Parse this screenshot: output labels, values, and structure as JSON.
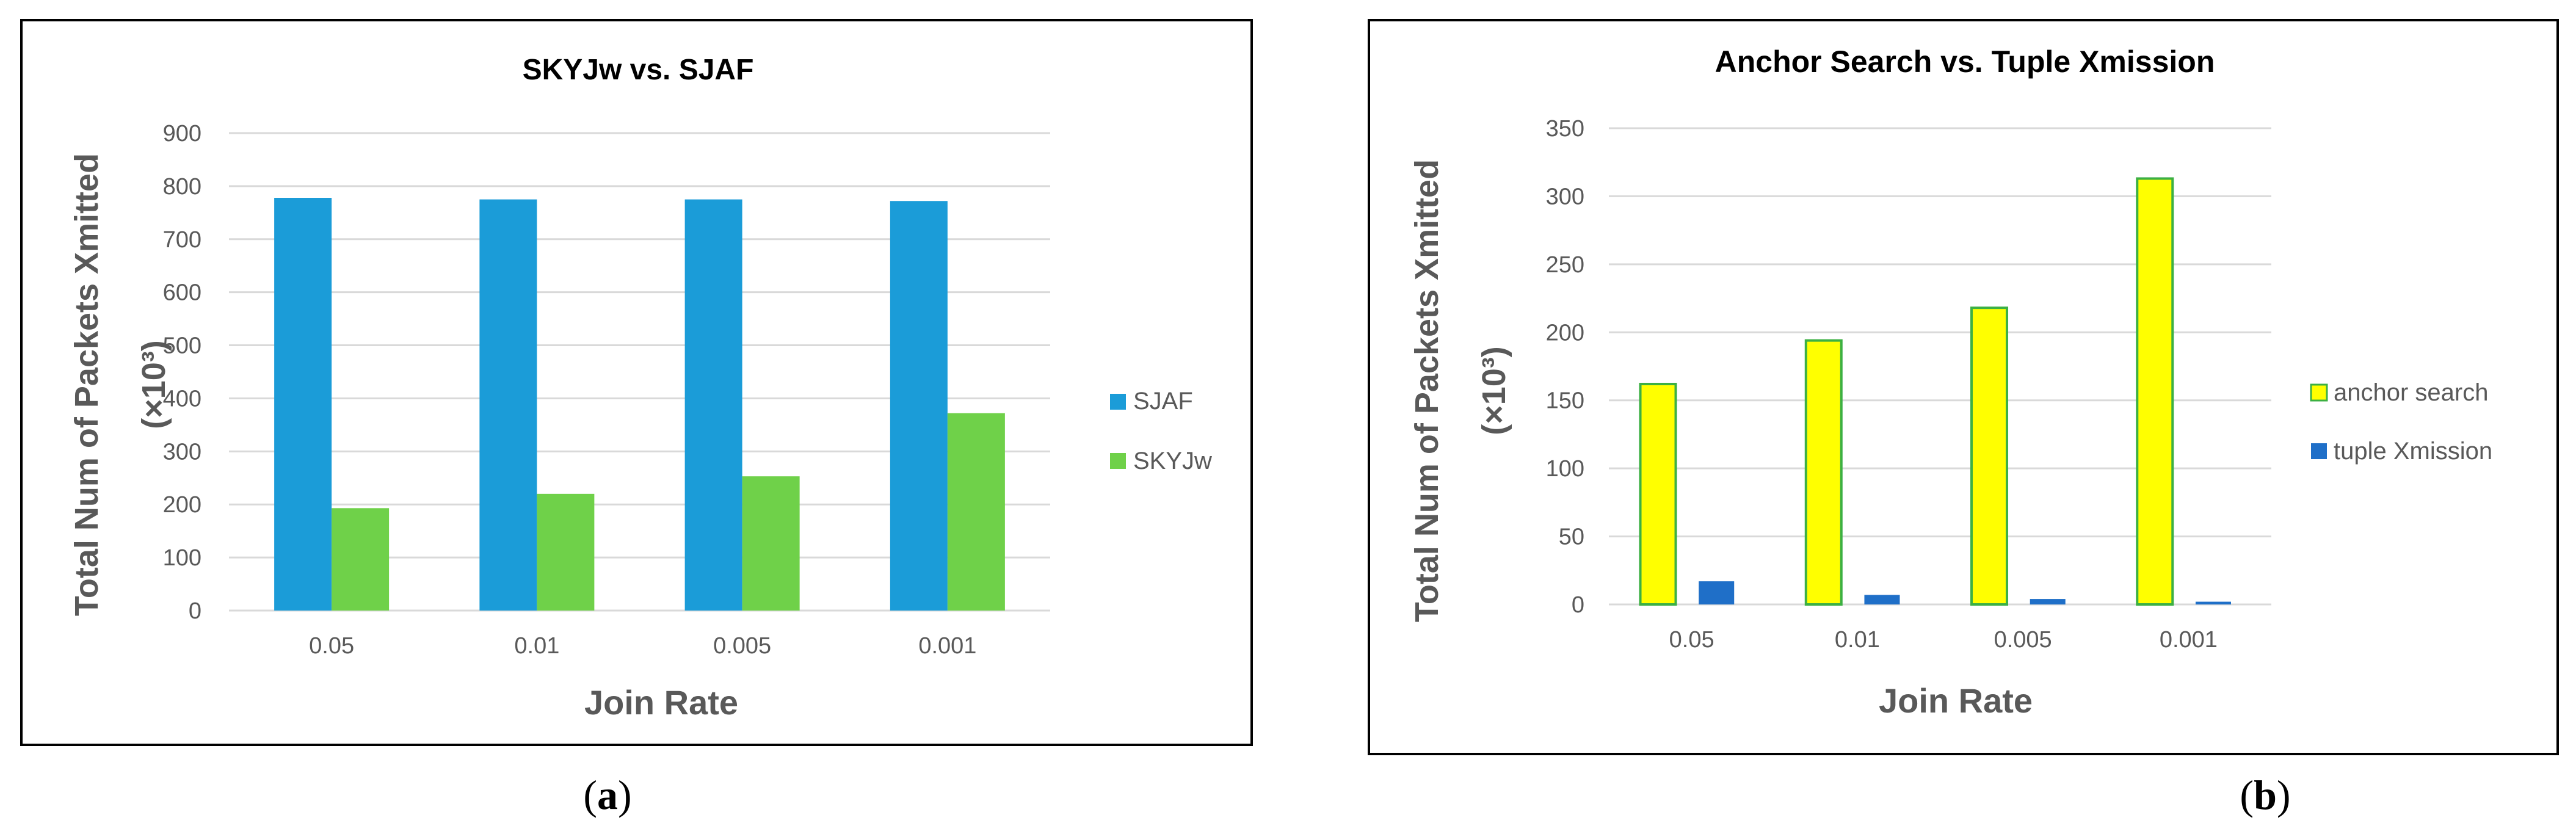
{
  "panels": [
    {
      "caption_open": "(",
      "caption_letter": "a",
      "caption_close": ")"
    },
    {
      "caption_open": "(",
      "caption_letter": "b",
      "caption_close": ")"
    }
  ],
  "colors": {
    "sjaf": "#1b9cd8",
    "skyjw": "#6fd149",
    "anchor_fill": "#ffff00",
    "anchor_stroke": "#3cb043",
    "tuple": "#1f6fc8",
    "grid": "#d9d9d9",
    "axis_text": "#595959",
    "title_text": "#000000",
    "frame": "#000000"
  },
  "chart_data": [
    {
      "type": "bar",
      "title": "SKYJw vs. SJAF",
      "xlabel": "Join Rate",
      "ylabel_line1": "Total Num of Packets Xmitted",
      "ylabel_line2": "(×10³)",
      "categories": [
        "0.05",
        "0.01",
        "0.005",
        "0.001"
      ],
      "ylim": [
        0,
        900
      ],
      "yticks": [
        0,
        100,
        200,
        300,
        400,
        500,
        600,
        700,
        800,
        900
      ],
      "grid": true,
      "legend_position": "right",
      "series": [
        {
          "name": "SJAF",
          "values": [
            778,
            775,
            775,
            772
          ]
        },
        {
          "name": "SKYJw",
          "values": [
            193,
            220,
            253,
            372
          ]
        }
      ]
    },
    {
      "type": "bar",
      "title": "Anchor Search vs. Tuple Xmission",
      "xlabel": "Join Rate",
      "ylabel_line1": "Total Num of Packets Xmitted",
      "ylabel_line2": "(×10³)",
      "categories": [
        "0.05",
        "0.01",
        "0.005",
        "0.001"
      ],
      "ylim": [
        0,
        350
      ],
      "yticks": [
        0,
        50,
        100,
        150,
        200,
        250,
        300,
        350
      ],
      "grid": true,
      "legend_position": "right",
      "series": [
        {
          "name": "anchor search",
          "values": [
            162,
            194,
            218,
            313
          ]
        },
        {
          "name": "tuple Xmission",
          "values": [
            17,
            7,
            4,
            2
          ]
        }
      ]
    }
  ]
}
